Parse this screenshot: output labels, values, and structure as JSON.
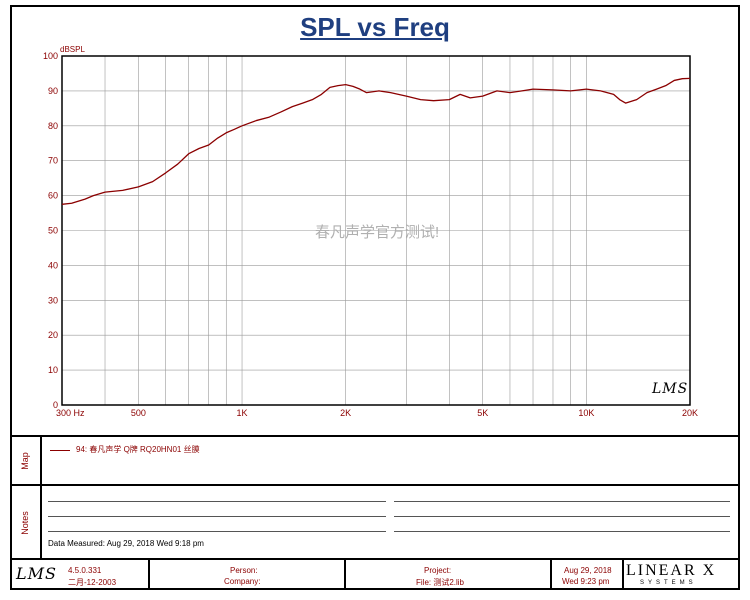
{
  "title": "SPL vs Freq",
  "watermark": "春凡声学官方测试!",
  "lms_mark": "LMS",
  "chart_data": {
    "type": "line",
    "title": "SPL vs Freq",
    "ylabel": "dBSPL",
    "xlabel": "",
    "x_scale": "log",
    "xlim": [
      300,
      20000
    ],
    "ylim": [
      0,
      100
    ],
    "y_ticks": [
      0,
      10,
      20,
      30,
      40,
      50,
      60,
      70,
      80,
      90,
      100
    ],
    "x_tick_labels": [
      {
        "value": 300,
        "label": "300  Hz"
      },
      {
        "value": 500,
        "label": "500"
      },
      {
        "value": 1000,
        "label": "1K"
      },
      {
        "value": 2000,
        "label": "2K"
      },
      {
        "value": 5000,
        "label": "5K"
      },
      {
        "value": 10000,
        "label": "10K"
      },
      {
        "value": 20000,
        "label": "20K"
      }
    ],
    "grid": true,
    "series": [
      {
        "name": "94: 春凡声学 Q牌 RQ20HN01 丝膜",
        "color": "#8b0000",
        "x": [
          300,
          320,
          350,
          370,
          400,
          450,
          500,
          550,
          600,
          650,
          700,
          750,
          800,
          850,
          900,
          950,
          1000,
          1100,
          1200,
          1300,
          1400,
          1500,
          1600,
          1700,
          1800,
          1900,
          2000,
          2100,
          2200,
          2300,
          2500,
          2700,
          3000,
          3300,
          3600,
          4000,
          4300,
          4600,
          5000,
          5500,
          6000,
          6500,
          7000,
          8000,
          9000,
          10000,
          11000,
          12000,
          12500,
          13000,
          14000,
          15000,
          16000,
          17000,
          18000,
          19000,
          20000
        ],
        "y": [
          57.5,
          57.8,
          59,
          60,
          61,
          61.5,
          62.5,
          64,
          66.5,
          69,
          72,
          73.5,
          74.5,
          76.5,
          78,
          79,
          80,
          81.5,
          82.5,
          84,
          85.5,
          86.5,
          87.5,
          89,
          91,
          91.5,
          91.8,
          91.3,
          90.5,
          89.5,
          90,
          89.5,
          88.5,
          87.5,
          87.2,
          87.5,
          89,
          88,
          88.5,
          90,
          89.5,
          90,
          90.5,
          90.3,
          90,
          90.5,
          90,
          89,
          87.5,
          86.5,
          87.5,
          89.5,
          90.5,
          91.5,
          93,
          93.5,
          93.6
        ]
      }
    ]
  },
  "map_section": {
    "label": "Map",
    "legend_text": "94: 春凡声学 Q牌 RQ20HN01 丝膜"
  },
  "notes_section": {
    "label": "Notes",
    "data_measured": "Data Measured: Aug 29, 2018  Wed  9:18 pm"
  },
  "footer": {
    "version": "4.5.0.331",
    "version_date": "二月-12-2003",
    "person_label": "Person:",
    "company_label": "Company:",
    "project_label": "Project:",
    "file_label": "File: 测试2.lib",
    "date": "Aug 29, 2018",
    "time": "Wed  9:23 pm",
    "brand": "LINEAR X",
    "brand_sub": "SYSTEMS"
  }
}
